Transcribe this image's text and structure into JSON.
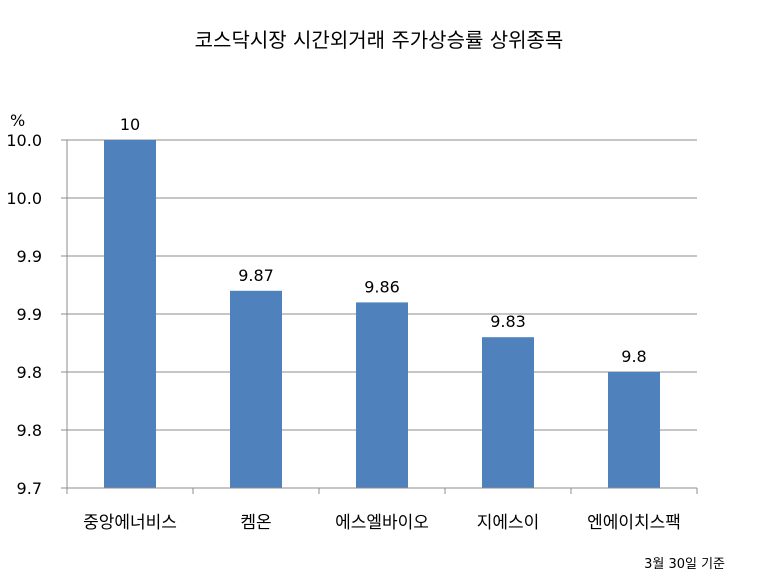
{
  "chart_data": {
    "type": "bar",
    "title": "코스닥시장 시간외거래  주가상승률 상위종목",
    "ylabel": "%",
    "xlabel": "",
    "categories": [
      "중앙에너비스",
      "켐온",
      "에스엘바이오",
      "지에스이",
      "엔에이치스팩"
    ],
    "values": [
      10,
      9.87,
      9.86,
      9.83,
      9.8
    ],
    "value_labels": [
      "10",
      "9.87",
      "9.86",
      "9.83",
      "9.8"
    ],
    "ylim": [
      9.7,
      10.0
    ],
    "ytick_labels": [
      "9.7",
      "9.8",
      "9.8",
      "9.9",
      "9.9",
      "10.0",
      "10.0"
    ],
    "grid": true,
    "bar_color": "#4f81bd",
    "note": "3월 30일 기준"
  }
}
